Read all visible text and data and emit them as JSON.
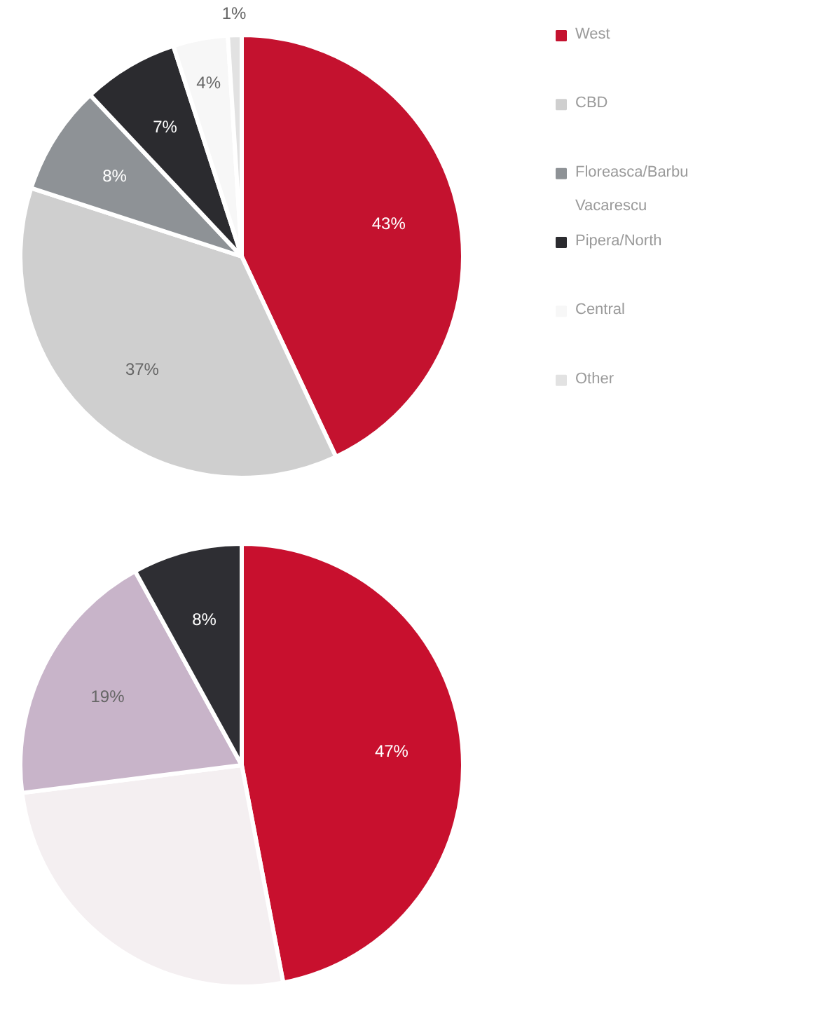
{
  "chart_data": [
    {
      "type": "pie",
      "categories": [
        "West",
        "CBD",
        "Floreasca/Barbu Vacarescu",
        "Pipera/North",
        "Central",
        "Other"
      ],
      "values": [
        43,
        37,
        8,
        7,
        4,
        1
      ],
      "colors": [
        "#c4122f",
        "#cfcfcf",
        "#8e9296",
        "#2b2b2f",
        "#f7f7f7",
        "#e2e2e2"
      ],
      "value_labels": [
        "43%",
        "37%",
        "8%",
        "7%",
        "4%",
        "1%"
      ],
      "legend": "right"
    },
    {
      "type": "pie",
      "categories": [
        null,
        null,
        null,
        null
      ],
      "values": [
        47,
        26,
        19,
        8
      ],
      "colors": [
        "#c8102e",
        "#f4eff1",
        "#c8b4c9",
        "#2e2e33"
      ],
      "value_labels": [
        "47%",
        null,
        "19%",
        "8%"
      ]
    }
  ]
}
